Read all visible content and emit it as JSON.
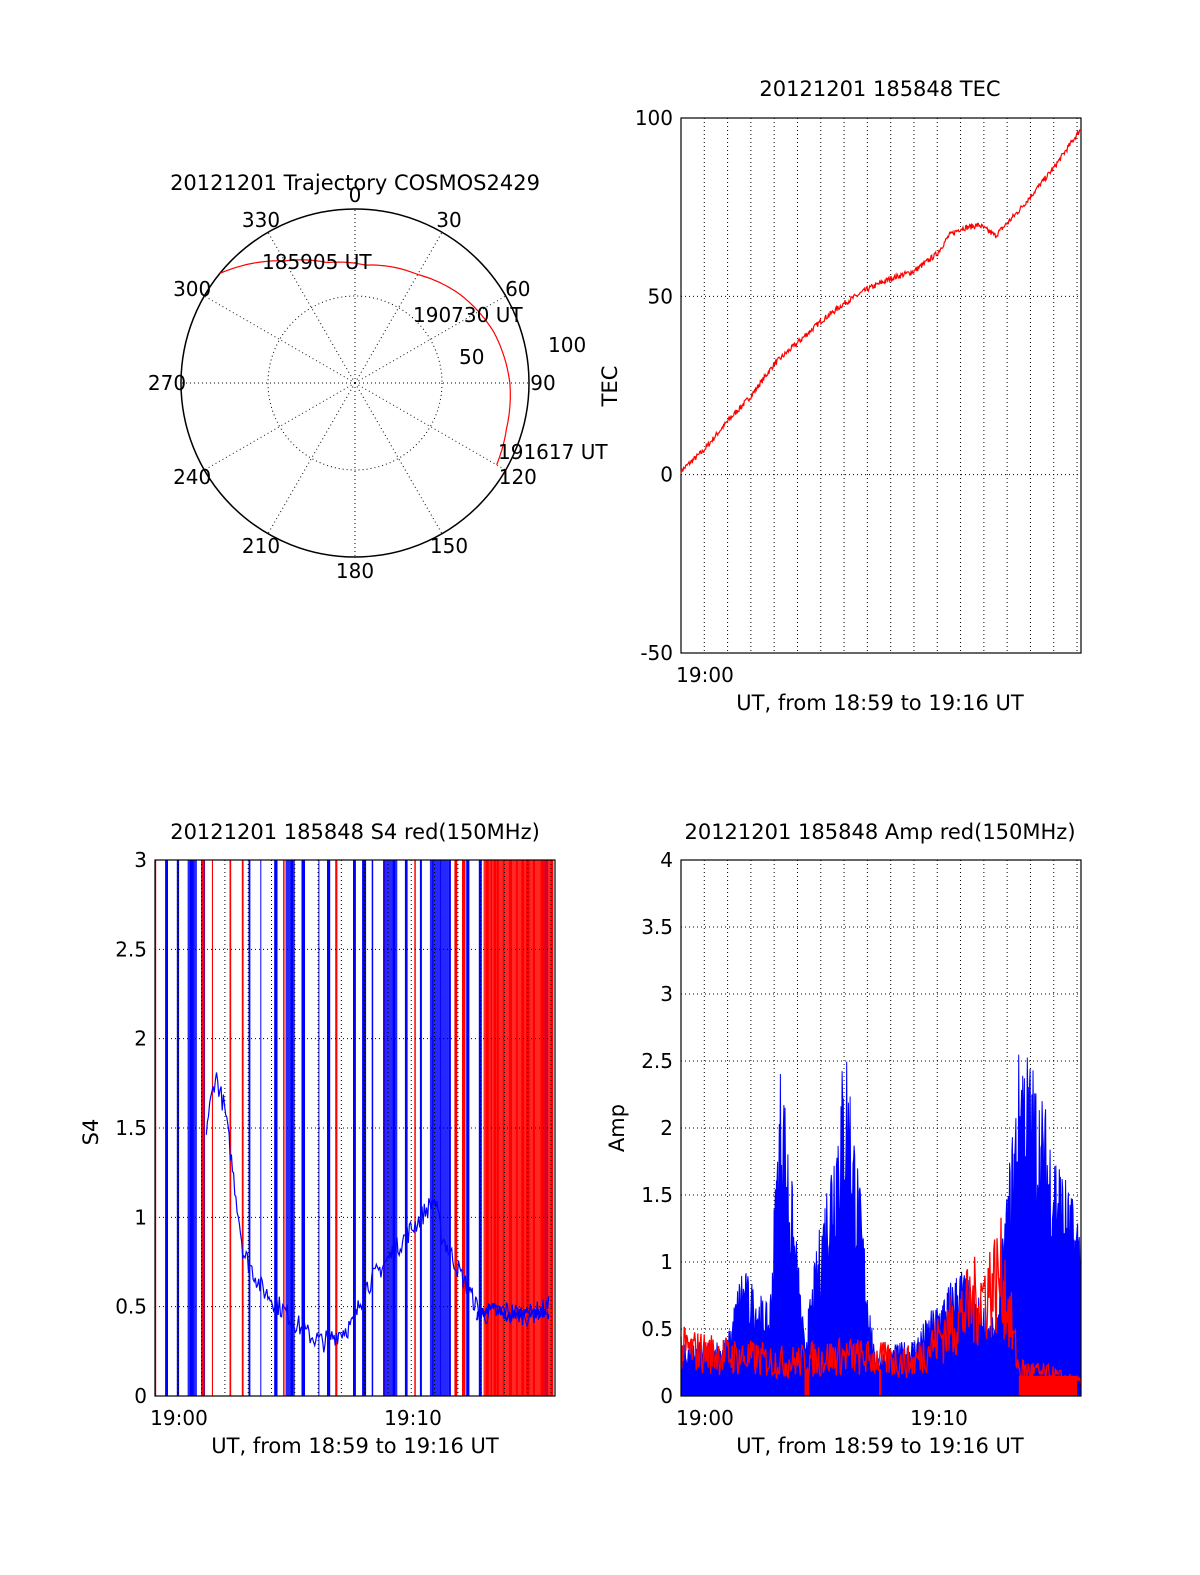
{
  "colors": {
    "red": "#ff0000",
    "blue": "#0000ff",
    "axis": "#000000",
    "background": "#ffffff"
  },
  "chart_data": [
    {
      "type": "polar",
      "title": "20121201 Trajectory COSMOS2429",
      "angle_labels": [
        "0",
        "30",
        "60",
        "90",
        "120",
        "150",
        "180",
        "210",
        "240",
        "270",
        "300",
        "330"
      ],
      "radial_labels": [
        "50",
        "100"
      ],
      "rlim": [
        0,
        100
      ],
      "series": [
        {
          "color": "red",
          "points": [
            {
              "az": 309,
              "r": 100
            },
            {
              "az": 330,
              "r": 81
            },
            {
              "az": 347,
              "r": 71
            },
            {
              "az": 5,
              "r": 68
            },
            {
              "az": 30,
              "r": 72
            },
            {
              "az": 50,
              "r": 79
            },
            {
              "az": 70,
              "r": 85
            },
            {
              "az": 90,
              "r": 89
            },
            {
              "az": 107,
              "r": 91
            },
            {
              "az": 120,
              "r": 94
            }
          ]
        }
      ],
      "annotations": [
        {
          "text": "185905 UT",
          "az": 309,
          "r": 100
        },
        {
          "text": "190730 UT",
          "az": 50,
          "r": 79
        },
        {
          "text": "191617 UT",
          "az": 120,
          "r": 94
        }
      ]
    },
    {
      "type": "line",
      "title": "20121201 185848 TEC",
      "xlabel": "UT, from 18:59 to 19:16 UT",
      "ylabel": "TEC",
      "xlim": [
        "18:59:00",
        "19:16:10"
      ],
      "ylim": [
        -50,
        100
      ],
      "yticks": [
        "-50",
        "0",
        "50",
        "100"
      ],
      "xticks": [
        "19:00"
      ],
      "grid": true,
      "series": [
        {
          "color": "red",
          "x_minutes": [
            0,
            1,
            2,
            3,
            4,
            5,
            6,
            7,
            8,
            9,
            10,
            11,
            11.5,
            12,
            12.8,
            13.5,
            14.5,
            15.5,
            16,
            17.17
          ],
          "values": [
            1,
            7,
            15,
            22,
            31,
            37,
            43,
            48,
            52,
            55,
            57,
            62,
            67,
            69,
            70,
            67,
            74,
            82,
            86,
            97
          ]
        }
      ]
    },
    {
      "type": "line",
      "title": "20121201 185848 S4 red(150MHz)",
      "xlabel": "UT, from 18:59 to 19:16 UT",
      "ylabel": "S4",
      "xlim": [
        "18:59:00",
        "19:16:10"
      ],
      "ylim": [
        0,
        3
      ],
      "yticks": [
        "0",
        "0.5",
        "1",
        "1.5",
        "2",
        "2.5",
        "3"
      ],
      "xticks": [
        "19:00",
        "19:10"
      ],
      "grid": true,
      "series": [
        {
          "color": "blue",
          "x_minutes": [
            2.2,
            2.6,
            3.0,
            3.4,
            3.8,
            4.2,
            4.6,
            6.5,
            7.2,
            8.5,
            9.0,
            12.0,
            12.3,
            14.0,
            15.0,
            16.0,
            16.9
          ],
          "values": [
            1.5,
            1.8,
            1.6,
            1.2,
            0.8,
            0.7,
            0.6,
            0.35,
            0.3,
            0.4,
            0.6,
            1.1,
            0.9,
            0.45,
            0.48,
            0.45,
            0.5
          ]
        },
        {
          "color": "red",
          "x_minutes": [
            13.8,
            14.5,
            15.2,
            16.0,
            16.9
          ],
          "values": [
            0.45,
            0.5,
            0.44,
            0.47,
            0.46
          ]
        }
      ]
    },
    {
      "type": "line",
      "title": "20121201 185848 Amp red(150MHz)",
      "xlabel": "UT, from 18:59 to 19:16 UT",
      "ylabel": "Amp",
      "xlim": [
        "18:59:00",
        "19:16:10"
      ],
      "ylim": [
        0,
        4
      ],
      "yticks": [
        "0",
        "0.5",
        "1",
        "1.5",
        "2",
        "2.5",
        "3",
        "3.5",
        "4"
      ],
      "xticks": [
        "19:00",
        "19:10"
      ],
      "grid": true,
      "series": [
        {
          "color": "blue",
          "x_minutes": [
            0,
            2,
            2.6,
            3.8,
            4.3,
            5.3,
            7.1,
            8.3,
            10,
            12,
            13.5,
            14.6,
            16,
            16.9
          ],
          "values": [
            0.35,
            0.4,
            0.9,
            0.6,
            2.4,
            0.4,
            2.5,
            0.3,
            0.4,
            0.9,
            0.5,
            2.55,
            1.8,
            1.3
          ]
        },
        {
          "color": "red",
          "x_minutes": [
            0,
            2,
            4.5,
            7,
            10,
            13.8,
            14.5,
            16,
            16.9
          ],
          "values": [
            0.35,
            0.3,
            0.25,
            0.3,
            0.25,
            0.9,
            0.2,
            0.15,
            0.1
          ]
        }
      ]
    }
  ]
}
